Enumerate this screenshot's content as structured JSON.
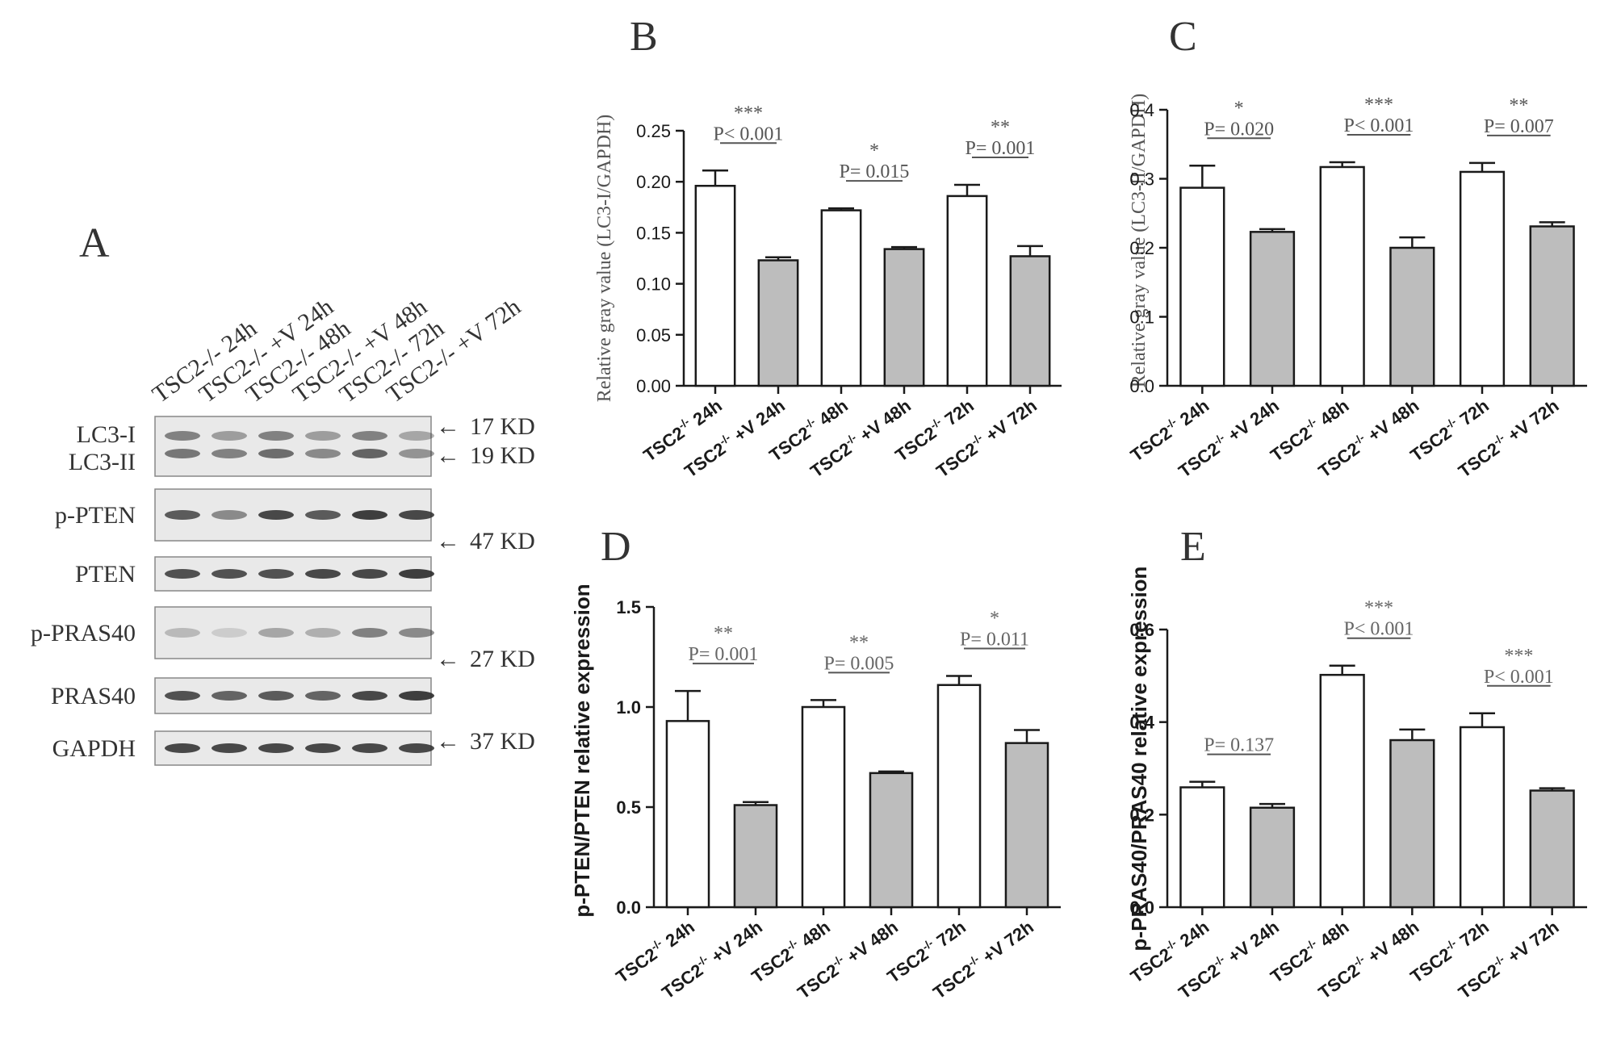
{
  "figure": {
    "colors": {
      "bar_control": "#ffffff",
      "bar_treated": "#bdbdbd",
      "axis": "#1a1a1a",
      "blot_bg": "#e9e9e9",
      "band": "#2b2b2b",
      "text_gray": "#4a4a4a"
    }
  },
  "blot_panel": {
    "panel_letter": "A",
    "lanes": [
      "TSC2-/- 24h",
      "TSC2-/- +V 24h",
      "TSC2-/- 48h",
      "TSC2-/- +V 48h",
      "TSC2-/- 72h",
      "TSC2-/- +V 72h"
    ],
    "rows": [
      {
        "labels": [
          "LC3-I",
          "LC3-II"
        ]
      },
      {
        "labels": [
          "p-PTEN"
        ]
      },
      {
        "labels": [
          "PTEN"
        ]
      },
      {
        "labels": [
          "p-PRAS40"
        ]
      },
      {
        "labels": [
          "PRAS40"
        ]
      },
      {
        "labels": [
          "GAPDH"
        ]
      }
    ],
    "markers": [
      "17 KD",
      "19 KD",
      "47 KD",
      "27 KD",
      "37 KD"
    ],
    "arrow_glyph": "←"
  },
  "chart_data": [
    {
      "panel_letter": "B",
      "type": "bar",
      "ylabel": "Relative gray value (LC3-I/GAPDH)",
      "categories": [
        "24h",
        "+V 24h",
        "48h",
        "+V 48h",
        "72h",
        "+V 72h"
      ],
      "category_prefix": "TSC2",
      "category_superscript": "-/-",
      "values": [
        0.196,
        0.123,
        0.172,
        0.134,
        0.186,
        0.127
      ],
      "errors": [
        0.015,
        0.003,
        0.002,
        0.002,
        0.011,
        0.01
      ],
      "ylim": [
        0,
        0.25
      ],
      "yticks": [
        "0.00",
        "0.05",
        "0.10",
        "0.15",
        "0.20",
        "0.25"
      ],
      "annotations": [
        {
          "stars": "***",
          "p": "P< 0.001"
        },
        {
          "stars": "*",
          "p": "P= 0.015"
        },
        {
          "stars": "**",
          "p": "P= 0.001"
        }
      ]
    },
    {
      "panel_letter": "C",
      "type": "bar",
      "ylabel": "Relative gray value (LC3-II/GAPDH)",
      "categories": [
        "24h",
        "+V 24h",
        "48h",
        "+V 48h",
        "72h",
        "+V 72h"
      ],
      "category_prefix": "TSC2",
      "category_superscript": "-/-",
      "values": [
        0.287,
        0.223,
        0.317,
        0.2,
        0.31,
        0.231
      ],
      "errors": [
        0.032,
        0.004,
        0.007,
        0.015,
        0.013,
        0.006
      ],
      "ylim": [
        0,
        0.4
      ],
      "yticks": [
        "0.0",
        "0.1",
        "0.2",
        "0.3",
        "0.4"
      ],
      "annotations": [
        {
          "stars": "*",
          "p": "P= 0.020"
        },
        {
          "stars": "***",
          "p": "P< 0.001"
        },
        {
          "stars": "**",
          "p": "P= 0.007"
        }
      ]
    },
    {
      "panel_letter": "D",
      "type": "bar",
      "ylabel": "p-PTEN/PTEN relative expression",
      "categories": [
        "24h",
        "+V 24h",
        "48h",
        "+V 48h",
        "72h",
        "+V 72h"
      ],
      "category_prefix": "TSC2",
      "category_superscript": "-/-",
      "values": [
        0.93,
        0.51,
        1.0,
        0.67,
        1.11,
        0.82
      ],
      "errors": [
        0.15,
        0.015,
        0.035,
        0.008,
        0.045,
        0.065
      ],
      "ylim": [
        0,
        1.5
      ],
      "yticks": [
        "0.0",
        "0.5",
        "1.0",
        "1.5"
      ],
      "annotations": [
        {
          "stars": "**",
          "p": "P= 0.001"
        },
        {
          "stars": "**",
          "p": "P= 0.005"
        },
        {
          "stars": "*",
          "p": "P= 0.011"
        }
      ]
    },
    {
      "panel_letter": "E",
      "type": "bar",
      "ylabel": "p-PRAS40/PRAS40 relative expression",
      "categories": [
        "24h",
        "+V 24h",
        "48h",
        "+V 48h",
        "72h",
        "+V 72h"
      ],
      "category_prefix": "TSC2",
      "category_superscript": "-/-",
      "values": [
        0.259,
        0.215,
        0.502,
        0.361,
        0.389,
        0.252
      ],
      "errors": [
        0.012,
        0.008,
        0.02,
        0.023,
        0.03,
        0.005
      ],
      "ylim": [
        0,
        0.6
      ],
      "yticks": [
        "0.0",
        "0.2",
        "0.4",
        "0.6"
      ],
      "annotations": [
        {
          "stars": "",
          "p": "P= 0.137"
        },
        {
          "stars": "***",
          "p": "P< 0.001"
        },
        {
          "stars": "***",
          "p": "P< 0.001"
        }
      ]
    }
  ]
}
